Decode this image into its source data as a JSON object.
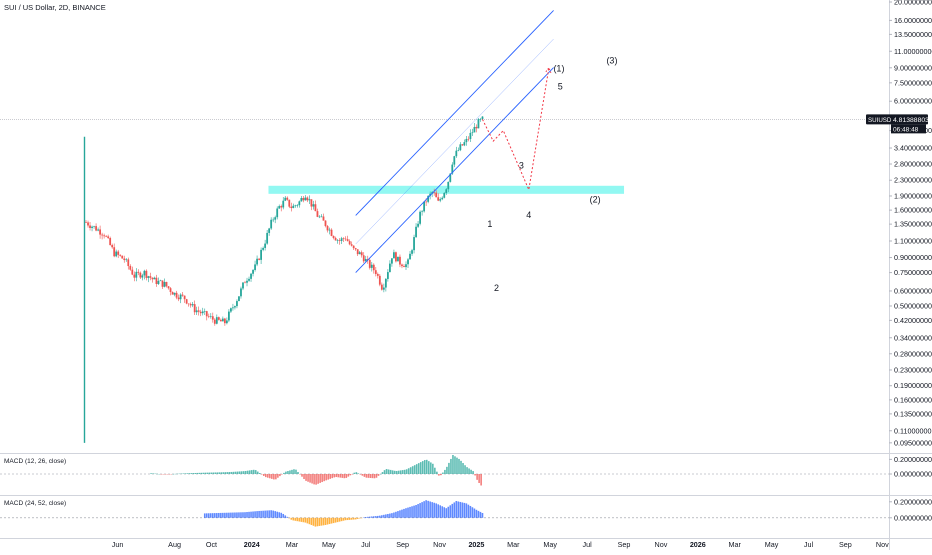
{
  "header": {
    "title": "SUI / US Dollar, 2D, BINANCE"
  },
  "price_tag": {
    "symbol": "SUIUSD",
    "price": "4.81388803",
    "countdown": "06:48:48"
  },
  "colors": {
    "up": "#26a69a",
    "down": "#ef5350",
    "channel": "#2962ff",
    "zone": "#7ff7f0",
    "projection": "#f23645",
    "macd1_pos": "#26a69a",
    "macd1_neg": "#ef5350",
    "macd2_pos": "#2962ff",
    "macd2_neg": "#ff9800"
  },
  "wave_labels": [
    {
      "label": "1",
      "t": 60.5,
      "p": 1.3
    },
    {
      "label": "2",
      "t": 61.5,
      "p": 0.6
    },
    {
      "label": "3",
      "t": 65.2,
      "p": 2.65
    },
    {
      "label": "4",
      "t": 66.3,
      "p": 1.45
    },
    {
      "label": "5",
      "t": 71.0,
      "p": 6.9
    },
    {
      "label": "(1)",
      "t": 70.8,
      "p": 8.6
    },
    {
      "label": "(2)",
      "t": 76.2,
      "p": 1.75
    },
    {
      "label": "(3)",
      "t": 78.7,
      "p": 9.5
    }
  ],
  "chart_data": {
    "type": "candlestick",
    "title": "SUI / US Dollar, 2D, BINANCE",
    "y_scale": "log",
    "ylim": [
      0.085,
      20
    ],
    "y_ticks": [
      "20.00000000",
      "16.00000000",
      "13.50000000",
      "11.00000000",
      "9.00000000",
      "7.50000000",
      "6.00000000",
      "4.20000000",
      "3.40000000",
      "2.80000000",
      "2.30000000",
      "1.90000000",
      "1.60000000",
      "1.35000000",
      "1.10000000",
      "0.90000000",
      "0.75000000",
      "0.60000000",
      "0.50000000",
      "0.42000000",
      "0.34000000",
      "0.28000000",
      "0.23000000",
      "0.19000000",
      "0.16000000",
      "0.13500000",
      "0.11000000",
      "0.09500000"
    ],
    "x_ticks": [
      {
        "label": "Jun",
        "t": 5
      },
      {
        "label": "Aug",
        "t": 13.5
      },
      {
        "label": "Oct",
        "t": 19
      },
      {
        "label": "2024",
        "t": 25
      },
      {
        "label": "Mar",
        "t": 31
      },
      {
        "label": "May",
        "t": 36.5
      },
      {
        "label": "Jul",
        "t": 42
      },
      {
        "label": "Sep",
        "t": 47.5
      },
      {
        "label": "Nov",
        "t": 53
      },
      {
        "label": "2025",
        "t": 58.5
      },
      {
        "label": "Mar",
        "t": 64
      },
      {
        "label": "May",
        "t": 69.5
      },
      {
        "label": "Jul",
        "t": 75
      },
      {
        "label": "Sep",
        "t": 80.5
      },
      {
        "label": "Nov",
        "t": 86
      },
      {
        "label": "2026",
        "t": 91.5
      },
      {
        "label": "Mar",
        "t": 97
      },
      {
        "label": "May",
        "t": 102.5
      },
      {
        "label": "Jul",
        "t": 108
      },
      {
        "label": "Sep",
        "t": 113.5
      },
      {
        "label": "Nov",
        "t": 119
      }
    ],
    "x_bold": [
      "2024",
      "2025",
      "2026"
    ],
    "price_path": [
      [
        0,
        1.4
      ],
      [
        1.5,
        1.3
      ],
      [
        3,
        1.2
      ],
      [
        4.5,
        0.95
      ],
      [
        6,
        0.88
      ],
      [
        7.5,
        0.72
      ],
      [
        9,
        0.75
      ],
      [
        10.5,
        0.68
      ],
      [
        12,
        0.65
      ],
      [
        13.5,
        0.58
      ],
      [
        15,
        0.55
      ],
      [
        16.5,
        0.48
      ],
      [
        18,
        0.45
      ],
      [
        19.5,
        0.42
      ],
      [
        21,
        0.41
      ],
      [
        22,
        0.48
      ],
      [
        23,
        0.56
      ],
      [
        24,
        0.68
      ],
      [
        25.5,
        0.8
      ],
      [
        27,
        1.1
      ],
      [
        28,
        1.4
      ],
      [
        29,
        1.65
      ],
      [
        30,
        1.8
      ],
      [
        31,
        1.65
      ],
      [
        32,
        1.75
      ],
      [
        33,
        1.95
      ],
      [
        33.8,
        1.75
      ],
      [
        34.8,
        1.5
      ],
      [
        36,
        1.35
      ],
      [
        37,
        1.2
      ],
      [
        38,
        1.1
      ],
      [
        39,
        1.15
      ],
      [
        40,
        1.0
      ],
      [
        41.5,
        0.92
      ],
      [
        42.5,
        0.82
      ],
      [
        43.5,
        0.76
      ],
      [
        44.5,
        0.62
      ],
      [
        45.2,
        0.75
      ],
      [
        46,
        0.95
      ],
      [
        47,
        0.85
      ],
      [
        48.2,
        0.82
      ],
      [
        49,
        1.05
      ],
      [
        50,
        1.5
      ],
      [
        51,
        1.8
      ],
      [
        52,
        2.0
      ],
      [
        52.8,
        1.75
      ],
      [
        53.5,
        1.95
      ],
      [
        54.2,
        2.2
      ],
      [
        55,
        3.0
      ],
      [
        56,
        3.4
      ],
      [
        57,
        3.7
      ],
      [
        58,
        4.2
      ],
      [
        58.7,
        4.6
      ],
      [
        59.4,
        4.8
      ]
    ],
    "spike": {
      "t": 0,
      "high": 3.9,
      "low": 0.095
    },
    "candles_last": {
      "close": 4.81388803
    },
    "resistance_zone": {
      "from": 1.95,
      "to": 2.15,
      "t_start": 27.5,
      "t_end": 80.5
    },
    "channel": {
      "lower": [
        [
          40.5,
          0.75
        ],
        [
          63,
          5.0
        ]
      ],
      "upper": [
        [
          40.5,
          1.5
        ],
        [
          63,
          10.0
        ]
      ],
      "extended_to_t": 70
    },
    "projection_path": [
      [
        59.4,
        4.81
      ],
      [
        61,
        3.7
      ],
      [
        62.5,
        4.2
      ],
      [
        66.3,
        2.05
      ],
      [
        69.3,
        9.0
      ]
    ],
    "macd_panels": [
      {
        "name": "MACD (12, 26, close)",
        "ylim": [
          -0.26,
          0.26
        ],
        "y_ticks": [
          "0.20000000",
          "0.00000000"
        ],
        "histogram": [
          [
            0,
            0.01
          ],
          [
            2,
            0.012
          ],
          [
            4,
            -0.008
          ],
          [
            6,
            -0.012
          ],
          [
            8,
            0.006
          ],
          [
            10,
            0.01
          ],
          [
            12,
            -0.006
          ],
          [
            14,
            0.004
          ],
          [
            16,
            0.012
          ],
          [
            18,
            0.018
          ],
          [
            20,
            0.022
          ],
          [
            22,
            0.028
          ],
          [
            24,
            0.04
          ],
          [
            25.5,
            0.06
          ],
          [
            27,
            -0.04
          ],
          [
            28.5,
            -0.08
          ],
          [
            30,
            0.03
          ],
          [
            31.5,
            0.07
          ],
          [
            33,
            -0.09
          ],
          [
            34.5,
            -0.15
          ],
          [
            36,
            -0.09
          ],
          [
            37.5,
            -0.04
          ],
          [
            39,
            -0.06
          ],
          [
            40.5,
            0.03
          ],
          [
            42,
            -0.05
          ],
          [
            43.5,
            -0.06
          ],
          [
            45,
            0.07
          ],
          [
            46.5,
            0.04
          ],
          [
            48,
            0.06
          ],
          [
            49.5,
            0.13
          ],
          [
            51,
            0.2
          ],
          [
            52,
            0.14
          ],
          [
            53,
            -0.04
          ],
          [
            54,
            0.08
          ],
          [
            55,
            0.26
          ],
          [
            56,
            0.2
          ],
          [
            57,
            0.1
          ],
          [
            58,
            0.04
          ],
          [
            58.7,
            -0.1
          ],
          [
            59.4,
            -0.18
          ]
        ]
      },
      {
        "name": "MACD (24, 52, close)",
        "ylim": [
          -0.24,
          0.26
        ],
        "y_ticks": [
          "0.20000000",
          "0.00000000"
        ],
        "histogram": [
          [
            0,
            0.01
          ],
          [
            3,
            0.015
          ],
          [
            6,
            0.02
          ],
          [
            9,
            0.025
          ],
          [
            12,
            0.03
          ],
          [
            14,
            0.04
          ],
          [
            16,
            0.05
          ],
          [
            18,
            0.055
          ],
          [
            20,
            0.06
          ],
          [
            22,
            0.065
          ],
          [
            24,
            0.07
          ],
          [
            26,
            0.085
          ],
          [
            28,
            0.095
          ],
          [
            29.5,
            0.06
          ],
          [
            31,
            -0.03
          ],
          [
            33,
            -0.06
          ],
          [
            34.5,
            -0.11
          ],
          [
            36,
            -0.09
          ],
          [
            37.5,
            -0.06
          ],
          [
            39,
            -0.03
          ],
          [
            40.5,
            -0.02
          ],
          [
            42,
            0.01
          ],
          [
            44,
            0.025
          ],
          [
            46,
            0.06
          ],
          [
            48,
            0.12
          ],
          [
            49.5,
            0.16
          ],
          [
            51,
            0.22
          ],
          [
            52.5,
            0.18
          ],
          [
            54,
            0.12
          ],
          [
            55.5,
            0.21
          ],
          [
            57,
            0.18
          ],
          [
            58.5,
            0.1
          ],
          [
            59.4,
            0.06
          ]
        ]
      }
    ]
  }
}
